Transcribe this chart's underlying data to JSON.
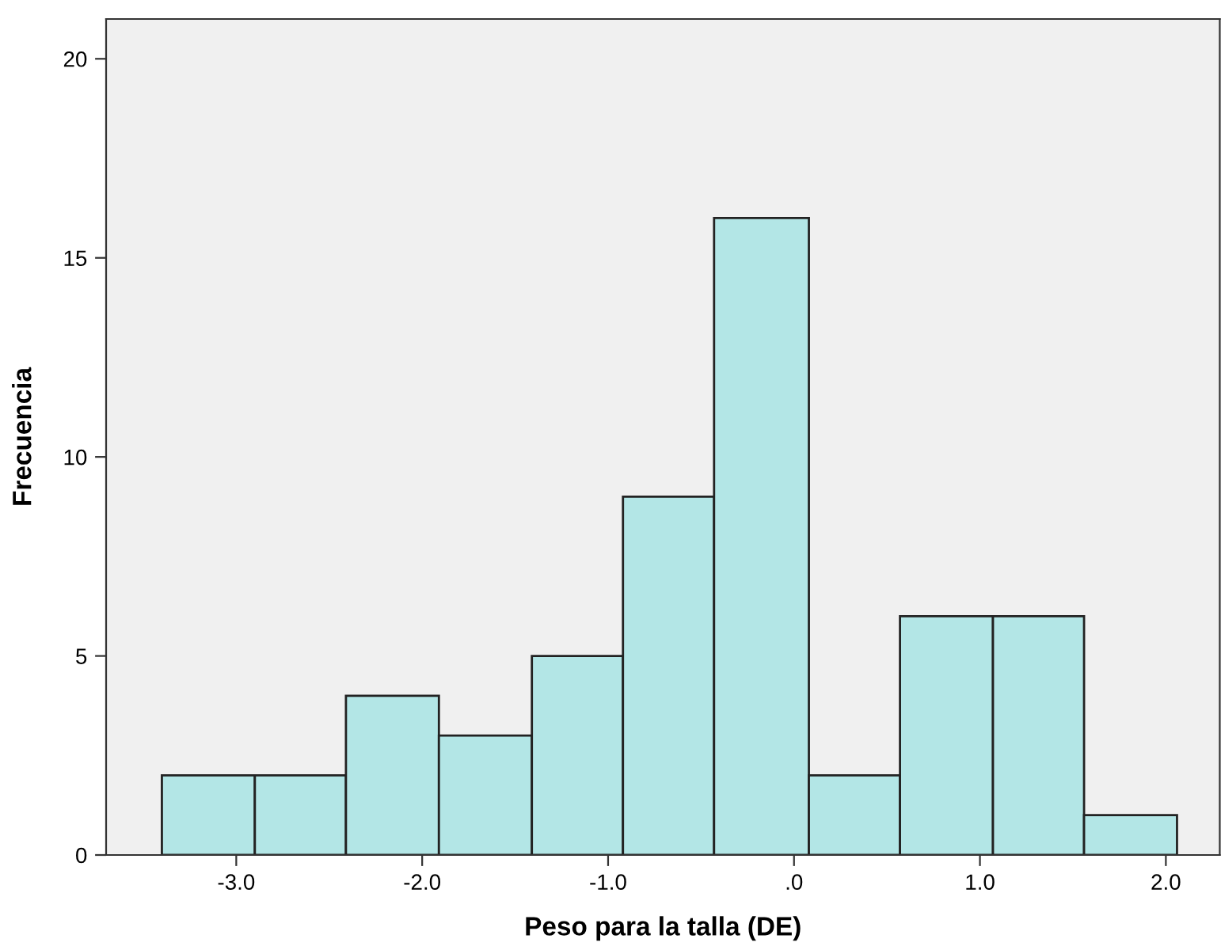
{
  "chart_data": {
    "type": "histogram",
    "xlabel": "Peso para la talla (DE)",
    "ylabel": "Frecuencia",
    "bins": [
      -3.4,
      -2.9,
      -2.41,
      -1.91,
      -1.41,
      -0.92,
      -0.43,
      0.08,
      0.57,
      1.07,
      1.56,
      2.06
    ],
    "values": [
      2,
      2,
      4,
      3,
      5,
      9,
      16,
      2,
      6,
      6,
      1
    ],
    "color": "#b3e6e6",
    "xlim": [
      -3.7,
      2.29
    ],
    "ylim": [
      0,
      21
    ],
    "xticks": [
      {
        "value": -3,
        "label": "-3.0"
      },
      {
        "value": -2,
        "label": "-2.0"
      },
      {
        "value": -1,
        "label": "-1.0"
      },
      {
        "value": 0,
        "label": ".0"
      },
      {
        "value": 1,
        "label": "1.0"
      },
      {
        "value": 2,
        "label": "2.0"
      }
    ],
    "yticks": [
      0,
      5,
      10,
      15,
      20
    ],
    "grid": false
  }
}
